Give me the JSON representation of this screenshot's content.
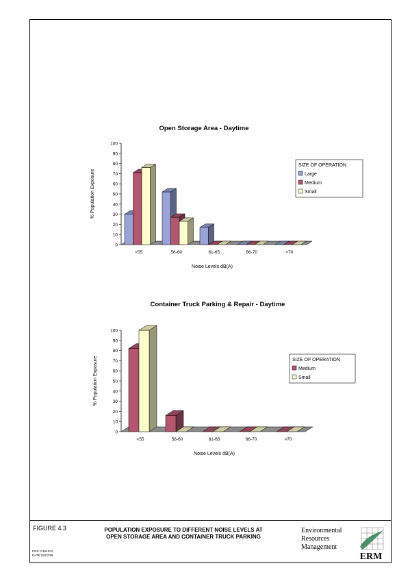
{
  "chart_data": [
    {
      "type": "bar",
      "title": "Open Storage Area - Daytime",
      "xlabel": "Noise Levels dB(A)",
      "ylabel": "% Population Exposure",
      "categories": [
        "<55",
        "56-60",
        "61-65",
        "66-70",
        ">70"
      ],
      "ylim": [
        0,
        100
      ],
      "yticks": [
        0,
        10,
        20,
        30,
        40,
        50,
        60,
        70,
        80,
        90,
        100
      ],
      "legend_title": "SIZE OF OPERATION",
      "legend_position": "right",
      "series": [
        {
          "name": "Large",
          "color": "#9aa3d8",
          "values": [
            30,
            52,
            17,
            0,
            0
          ]
        },
        {
          "name": "Medium",
          "color": "#b35670",
          "values": [
            71,
            27,
            0,
            0,
            0
          ]
        },
        {
          "name": "Small",
          "color": "#ffffcc",
          "values": [
            76,
            23,
            0,
            0,
            0
          ]
        }
      ]
    },
    {
      "type": "bar",
      "title": "Container Truck Parking & Repair - Daytime",
      "xlabel": "Noise Levels dB(A)",
      "ylabel": "% Population Exposure",
      "categories": [
        "<55",
        "56-60",
        "61-65",
        "66-70",
        ">70"
      ],
      "ylim": [
        0,
        100
      ],
      "yticks": [
        0,
        10,
        20,
        30,
        40,
        50,
        60,
        70,
        80,
        90,
        100
      ],
      "legend_title": "SIZE OF OPERATION",
      "legend_position": "right",
      "series": [
        {
          "name": "Medium",
          "color": "#b35670",
          "values": [
            82,
            16,
            0,
            0,
            0
          ]
        },
        {
          "name": "Small",
          "color": "#ffffcc",
          "values": [
            100,
            0,
            0,
            0,
            0
          ]
        }
      ]
    }
  ],
  "footer": {
    "figure_label": "FIGURE 4.3",
    "title_line1": "POPULATION EXPOSURE TO DIFFERENT NOISE LEVELS AT",
    "title_line2": "OPEN STORAGE AREA AND CONTAINER TRUCK PARKING",
    "file_line": "FILE: C1612c3",
    "date_line": "DATE:02/07/99",
    "company_line1": "Environmental",
    "company_line2": "Resources",
    "company_line3": "Management",
    "logo_text": "ERM"
  }
}
